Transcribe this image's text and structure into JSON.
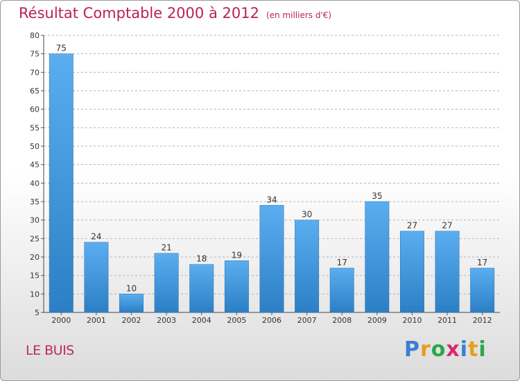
{
  "title": "Résultat Comptable 2000 à 2012",
  "subtitle": "(en milliers d'€)",
  "commune": "LE BUIS",
  "logo": {
    "letters": [
      "P",
      "r",
      "o",
      "x",
      "i",
      "t",
      "i"
    ],
    "colors": [
      "#3a7fd0",
      "#e0a020",
      "#2aa84a",
      "#d62a6a",
      "#3a7fd0",
      "#e0a020",
      "#2aa84a"
    ]
  },
  "colors": {
    "bar_top": "#5aaef0",
    "bar_bottom": "#2c7fc4",
    "title": "#b82350",
    "grid": "#b4b4b4"
  },
  "chart_data": {
    "type": "bar",
    "title": "Résultat Comptable 2000 à 2012",
    "subtitle": "(en milliers d'€)",
    "xlabel": "",
    "ylabel": "",
    "categories": [
      "2000",
      "2001",
      "2002",
      "2003",
      "2004",
      "2005",
      "2006",
      "2007",
      "2008",
      "2009",
      "2010",
      "2011",
      "2012"
    ],
    "values": [
      75,
      24,
      10,
      21,
      18,
      19,
      34,
      30,
      17,
      35,
      27,
      27,
      17
    ],
    "ylim": [
      5,
      80
    ],
    "yticks": [
      5,
      10,
      15,
      20,
      25,
      30,
      35,
      40,
      45,
      50,
      55,
      60,
      65,
      70,
      75,
      80
    ],
    "grid": true
  }
}
